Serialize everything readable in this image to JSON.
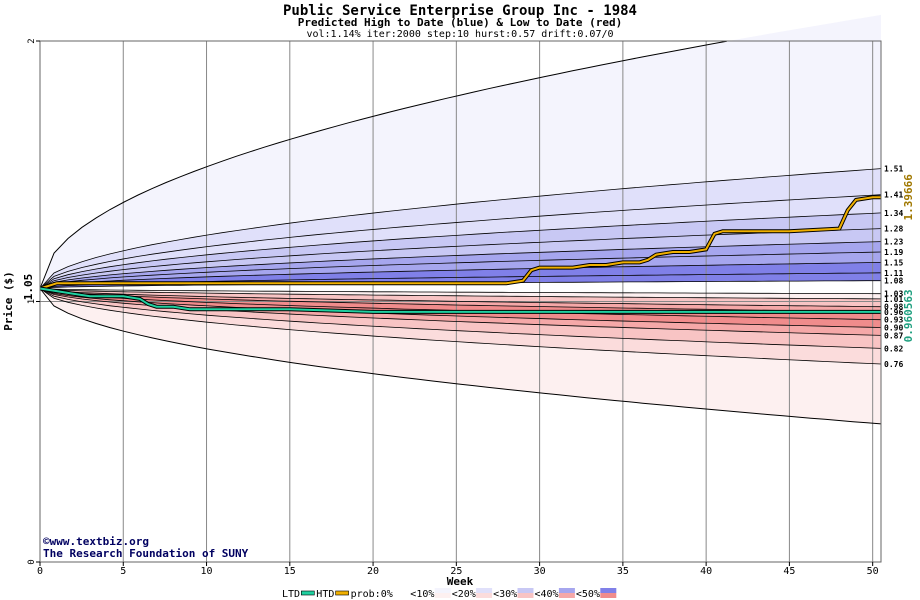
{
  "chart_data": {
    "type": "area",
    "title": "Public Service Enterprise Group Inc - 1984",
    "subtitle": "Predicted High to Date (blue) &  Low to Date (red)",
    "params": "vol:1.14% iter:2000 step:10 hurst:0.57 drift:0.07/0",
    "xlabel": "Week",
    "ylabel": "Price ($)",
    "xlim": [
      0,
      50.5
    ],
    "ylim": [
      0,
      2
    ],
    "x_ticks": [
      0,
      5,
      10,
      15,
      20,
      25,
      30,
      35,
      40,
      45,
      50
    ],
    "y_ticks": [
      0,
      1,
      2
    ],
    "grid": true,
    "start_price": 1.05,
    "start_label": "1.05",
    "htd_final_label": "1.39666",
    "ltd_final_label": "0.960563",
    "watermark": [
      "©www.textbiz.org",
      "The Research Foundation of SUNY"
    ],
    "legend_items": [
      "LTD",
      "HTD",
      "prob:0%",
      "<10%",
      "<20%",
      "<30%",
      "<40%",
      "<50%"
    ],
    "legend_colors": [
      "#ffffff",
      "#f4f4fd",
      "#e0e0fa",
      "#c8c8f4",
      "#a6a6ee",
      "#8080e8"
    ],
    "red_colors": [
      "#ffffff",
      "#fdf0f0",
      "#fbdcdc",
      "#f8c4c4",
      "#f5a8a8",
      "#f08c8c"
    ],
    "colors": {
      "htd": "#f0b000",
      "ltd": "#20d0a0",
      "htd_label": "#a07800",
      "ltd_label": "#20a080"
    },
    "high_quantiles": [
      {
        "label": "1.51",
        "end": 1.51,
        "shape": 0.5
      },
      {
        "label": "1.41",
        "end": 1.41,
        "shape": 0.5
      },
      {
        "label": "1.34",
        "end": 1.34,
        "shape": 0.5
      },
      {
        "label": "1.28",
        "end": 1.28,
        "shape": 0.5
      },
      {
        "label": "1.23",
        "end": 1.23,
        "shape": 0.5
      },
      {
        "label": "1.19",
        "end": 1.19,
        "shape": 0.5
      },
      {
        "label": "1.15",
        "end": 1.15,
        "shape": 0.5
      },
      {
        "label": "1.11",
        "end": 1.11,
        "shape": 0.5
      },
      {
        "label": "1.08",
        "end": 1.08,
        "shape": 0.5
      }
    ],
    "low_quantiles": [
      {
        "label": "1.03",
        "end": 1.03,
        "shape": 0.5
      },
      {
        "label": "1.01",
        "end": 1.01,
        "shape": 0.5
      },
      {
        "label": "0.98",
        "end": 0.98,
        "shape": 0.5
      },
      {
        "label": "0.96",
        "end": 0.96,
        "shape": 0.5
      },
      {
        "label": "0.93",
        "end": 0.93,
        "shape": 0.5
      },
      {
        "label": "0.90",
        "end": 0.9,
        "shape": 0.5
      },
      {
        "label": "0.87",
        "end": 0.87,
        "shape": 0.5
      },
      {
        "label": "0.82",
        "end": 0.82,
        "shape": 0.5
      },
      {
        "label": "0.76",
        "end": 0.76,
        "shape": 0.5
      }
    ],
    "outer_high": {
      "end": 2.0,
      "at_week": 32
    },
    "outer_low": {
      "end": 0.53
    },
    "htd_series": {
      "name": "HTD",
      "x": [
        0,
        0.5,
        1,
        2,
        3,
        5,
        10,
        15,
        20,
        25,
        28,
        29,
        29.5,
        30,
        31,
        32,
        33,
        34,
        35,
        36,
        36.5,
        37,
        38,
        39,
        40,
        40.5,
        41,
        45,
        48,
        48.5,
        49,
        50,
        50.5
      ],
      "y": [
        1.05,
        1.06,
        1.07,
        1.07,
        1.07,
        1.07,
        1.07,
        1.07,
        1.07,
        1.07,
        1.07,
        1.08,
        1.12,
        1.13,
        1.13,
        1.13,
        1.14,
        1.14,
        1.15,
        1.15,
        1.16,
        1.18,
        1.19,
        1.19,
        1.2,
        1.26,
        1.27,
        1.27,
        1.28,
        1.35,
        1.39,
        1.4,
        1.4
      ]
    },
    "ltd_series": {
      "name": "LTD",
      "x": [
        0,
        1,
        2,
        3,
        4,
        5,
        6,
        6.5,
        7,
        8,
        9,
        10,
        15,
        20,
        25,
        30,
        35,
        40,
        45,
        50,
        50.5
      ],
      "y": [
        1.05,
        1.04,
        1.03,
        1.02,
        1.02,
        1.02,
        1.01,
        0.99,
        0.98,
        0.98,
        0.97,
        0.97,
        0.97,
        0.96,
        0.96,
        0.96,
        0.96,
        0.96,
        0.96,
        0.96,
        0.96
      ]
    }
  }
}
